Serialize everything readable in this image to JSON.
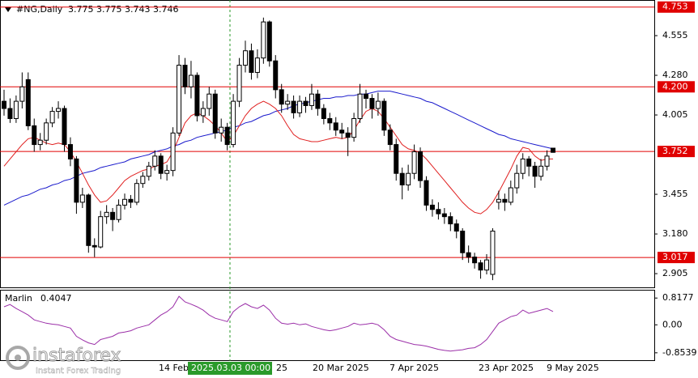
{
  "chart_data": {
    "type": "candlestick",
    "title": "#NG,Daily",
    "ohlc_text": "3.775 3.775 3.743 3.746",
    "candles": [
      [
        4.1,
        4.18,
        4.0,
        4.05
      ],
      [
        4.05,
        4.12,
        3.95,
        3.98
      ],
      [
        3.98,
        4.14,
        3.95,
        4.1
      ],
      [
        4.1,
        4.3,
        4.05,
        4.2
      ],
      [
        4.25,
        4.3,
        3.9,
        3.93
      ],
      [
        3.93,
        3.98,
        3.75,
        3.8
      ],
      [
        3.8,
        3.88,
        3.76,
        3.83
      ],
      [
        3.83,
        3.98,
        3.8,
        3.95
      ],
      [
        3.95,
        4.06,
        3.92,
        4.03
      ],
      [
        4.03,
        4.1,
        3.98,
        4.05
      ],
      [
        4.05,
        4.07,
        3.75,
        3.8
      ],
      [
        3.8,
        3.85,
        3.65,
        3.7
      ],
      [
        3.7,
        3.72,
        3.32,
        3.4
      ],
      [
        3.4,
        3.5,
        3.36,
        3.45
      ],
      [
        3.45,
        3.46,
        3.05,
        3.1
      ],
      [
        3.1,
        3.15,
        3.02,
        3.09
      ],
      [
        3.09,
        3.34,
        3.08,
        3.3
      ],
      [
        3.3,
        3.38,
        3.25,
        3.33
      ],
      [
        3.33,
        3.36,
        3.2,
        3.28
      ],
      [
        3.28,
        3.42,
        3.26,
        3.38
      ],
      [
        3.38,
        3.46,
        3.35,
        3.42
      ],
      [
        3.42,
        3.45,
        3.36,
        3.4
      ],
      [
        3.4,
        3.56,
        3.38,
        3.53
      ],
      [
        3.53,
        3.61,
        3.5,
        3.58
      ],
      [
        3.58,
        3.68,
        3.55,
        3.65
      ],
      [
        3.65,
        3.76,
        3.62,
        3.72
      ],
      [
        3.72,
        3.74,
        3.56,
        3.6
      ],
      [
        3.6,
        3.66,
        3.55,
        3.62
      ],
      [
        3.62,
        3.92,
        3.58,
        3.88
      ],
      [
        3.88,
        4.42,
        3.86,
        4.35
      ],
      [
        4.35,
        4.4,
        4.15,
        4.2
      ],
      [
        4.2,
        4.38,
        4.12,
        4.28
      ],
      [
        4.28,
        4.3,
        3.96,
        4.0
      ],
      [
        4.0,
        4.1,
        3.95,
        4.05
      ],
      [
        4.05,
        4.2,
        4.0,
        4.15
      ],
      [
        4.15,
        4.18,
        3.84,
        3.88
      ],
      [
        3.88,
        3.98,
        3.82,
        3.92
      ],
      [
        3.92,
        3.95,
        3.76,
        3.8
      ],
      [
        3.8,
        4.15,
        3.78,
        4.1
      ],
      [
        4.1,
        4.4,
        4.06,
        4.35
      ],
      [
        4.35,
        4.52,
        4.3,
        4.45
      ],
      [
        4.45,
        4.5,
        4.25,
        4.3
      ],
      [
        4.3,
        4.46,
        4.26,
        4.4
      ],
      [
        4.4,
        4.68,
        4.36,
        4.65
      ],
      [
        4.65,
        4.66,
        4.34,
        4.38
      ],
      [
        4.38,
        4.42,
        4.12,
        4.18
      ],
      [
        4.18,
        4.22,
        4.02,
        4.08
      ],
      [
        4.08,
        4.15,
        4.04,
        4.1
      ],
      [
        4.1,
        4.14,
        3.98,
        4.02
      ],
      [
        4.02,
        4.14,
        3.99,
        4.1
      ],
      [
        4.1,
        4.13,
        4.02,
        4.07
      ],
      [
        4.07,
        4.22,
        4.04,
        4.15
      ],
      [
        4.15,
        4.18,
        4.0,
        4.05
      ],
      [
        4.05,
        4.08,
        3.94,
        3.98
      ],
      [
        3.98,
        4.02,
        3.9,
        3.95
      ],
      [
        3.95,
        3.99,
        3.86,
        3.9
      ],
      [
        3.9,
        3.95,
        3.84,
        3.88
      ],
      [
        3.88,
        3.92,
        3.72,
        3.85
      ],
      [
        3.85,
        4.02,
        3.82,
        3.98
      ],
      [
        3.98,
        4.22,
        3.95,
        4.15
      ],
      [
        4.15,
        4.18,
        4.05,
        4.12
      ],
      [
        4.12,
        4.15,
        3.98,
        4.05
      ],
      [
        4.05,
        4.16,
        4.0,
        4.1
      ],
      [
        4.1,
        4.12,
        3.86,
        3.9
      ],
      [
        3.9,
        3.94,
        3.76,
        3.8
      ],
      [
        3.8,
        3.84,
        3.55,
        3.6
      ],
      [
        3.6,
        3.64,
        3.42,
        3.52
      ],
      [
        3.52,
        3.66,
        3.48,
        3.6
      ],
      [
        3.6,
        3.8,
        3.56,
        3.75
      ],
      [
        3.75,
        3.78,
        3.5,
        3.55
      ],
      [
        3.55,
        3.58,
        3.34,
        3.38
      ],
      [
        3.38,
        3.42,
        3.3,
        3.35
      ],
      [
        3.35,
        3.4,
        3.28,
        3.32
      ],
      [
        3.32,
        3.36,
        3.25,
        3.3
      ],
      [
        3.3,
        3.33,
        3.2,
        3.25
      ],
      [
        3.25,
        3.28,
        3.15,
        3.2
      ],
      [
        3.2,
        3.22,
        3.0,
        3.05
      ],
      [
        3.05,
        3.1,
        2.98,
        3.02
      ],
      [
        3.02,
        3.05,
        2.94,
        2.98
      ],
      [
        2.98,
        3.0,
        2.87,
        2.93
      ],
      [
        2.93,
        3.04,
        2.9,
        3.0
      ],
      [
        2.9,
        3.22,
        2.86,
        3.2
      ],
      [
        3.4,
        3.48,
        3.35,
        3.42
      ],
      [
        3.42,
        3.46,
        3.34,
        3.4
      ],
      [
        3.4,
        3.55,
        3.38,
        3.5
      ],
      [
        3.5,
        3.66,
        3.46,
        3.6
      ],
      [
        3.6,
        3.74,
        3.56,
        3.7
      ],
      [
        3.7,
        3.72,
        3.58,
        3.65
      ],
      [
        3.65,
        3.68,
        3.5,
        3.58
      ],
      [
        3.58,
        3.7,
        3.55,
        3.65
      ],
      [
        3.65,
        3.76,
        3.62,
        3.72
      ],
      [
        3.775,
        3.775,
        3.743,
        3.746
      ]
    ],
    "series": [
      {
        "color": "#1a1acc",
        "values": [
          3.38,
          3.4,
          3.42,
          3.44,
          3.45,
          3.47,
          3.49,
          3.5,
          3.52,
          3.53,
          3.55,
          3.56,
          3.58,
          3.6,
          3.61,
          3.62,
          3.64,
          3.65,
          3.66,
          3.67,
          3.68,
          3.7,
          3.71,
          3.72,
          3.73,
          3.75,
          3.76,
          3.77,
          3.79,
          3.8,
          3.82,
          3.83,
          3.85,
          3.86,
          3.87,
          3.88,
          3.89,
          3.9,
          3.92,
          3.93,
          3.95,
          3.96,
          3.98,
          4.0,
          4.01,
          4.03,
          4.04,
          4.05,
          4.07,
          4.08,
          4.09,
          4.1,
          4.11,
          4.12,
          4.12,
          4.13,
          4.13,
          4.14,
          4.14,
          4.15,
          4.15,
          4.16,
          4.17,
          4.17,
          4.17,
          4.16,
          4.15,
          4.14,
          4.13,
          4.12,
          4.1,
          4.09,
          4.07,
          4.05,
          4.03,
          4.01,
          3.99,
          3.97,
          3.95,
          3.93,
          3.91,
          3.89,
          3.87,
          3.86,
          3.84,
          3.83,
          3.82,
          3.81,
          3.8,
          3.79,
          3.78,
          3.77
        ]
      },
      {
        "color": "#e02020",
        "values": [
          3.65,
          3.7,
          3.75,
          3.8,
          3.84,
          3.85,
          3.83,
          3.81,
          3.8,
          3.81,
          3.8,
          3.75,
          3.68,
          3.6,
          3.52,
          3.45,
          3.4,
          3.41,
          3.45,
          3.5,
          3.55,
          3.58,
          3.6,
          3.62,
          3.63,
          3.65,
          3.66,
          3.68,
          3.75,
          3.85,
          3.95,
          4.0,
          4.02,
          4.0,
          3.97,
          3.93,
          3.88,
          3.82,
          3.86,
          3.93,
          4.0,
          4.05,
          4.08,
          4.1,
          4.08,
          4.05,
          4.0,
          3.93,
          3.87,
          3.84,
          3.83,
          3.82,
          3.82,
          3.83,
          3.84,
          3.85,
          3.84,
          3.85,
          3.9,
          3.97,
          4.03,
          4.05,
          4.03,
          3.98,
          3.92,
          3.86,
          3.8,
          3.77,
          3.76,
          3.74,
          3.7,
          3.65,
          3.6,
          3.55,
          3.5,
          3.45,
          3.4,
          3.36,
          3.33,
          3.32,
          3.35,
          3.4,
          3.47,
          3.55,
          3.63,
          3.72,
          3.78,
          3.77,
          3.72,
          3.69,
          3.7,
          3.7
        ]
      }
    ],
    "levels": [
      4.753,
      {
        "value": 4.2,
        "label": "4.200"
      },
      3.752,
      3.017
    ],
    "level_color": "#e00000",
    "ylim": [
      2.81,
      4.802
    ],
    "yticks": [
      4.555,
      {
        "value": 4.28,
        "label": "4.280"
      },
      4.005,
      3.455,
      {
        "value": 3.18,
        "label": "3.180"
      },
      2.905
    ],
    "indicator": {
      "name": "Marlin",
      "last": 0.4047,
      "color": "#9b2fa8",
      "values": [
        0.55,
        0.62,
        0.5,
        0.4,
        0.3,
        0.15,
        0.1,
        0.05,
        0.02,
        0.0,
        -0.05,
        -0.1,
        -0.35,
        -0.46,
        -0.55,
        -0.6,
        -0.45,
        -0.4,
        -0.35,
        -0.25,
        -0.22,
        -0.18,
        -0.1,
        -0.05,
        0.0,
        0.15,
        0.3,
        0.4,
        0.55,
        0.87,
        0.7,
        0.63,
        0.55,
        0.45,
        0.3,
        0.2,
        0.15,
        0.1,
        0.4,
        0.55,
        0.65,
        0.55,
        0.5,
        0.6,
        0.45,
        0.2,
        0.05,
        0.02,
        0.05,
        0.0,
        0.03,
        -0.05,
        -0.1,
        -0.15,
        -0.18,
        -0.15,
        -0.1,
        -0.05,
        0.05,
        0.0,
        0.02,
        0.05,
        0.0,
        -0.15,
        -0.35,
        -0.45,
        -0.5,
        -0.55,
        -0.6,
        -0.62,
        -0.65,
        -0.7,
        -0.75,
        -0.78,
        -0.8,
        -0.78,
        -0.76,
        -0.72,
        -0.7,
        -0.6,
        -0.45,
        -0.2,
        0.05,
        0.15,
        0.25,
        0.3,
        0.45,
        0.35,
        0.4,
        0.45,
        0.5,
        0.4047
      ],
      "y2lim": [
        -1.08,
        1.07
      ],
      "y2ticks": [
        0.8177,
        {
          "value": 0,
          "label": "0.00"
        },
        -0.8539
      ]
    },
    "x_labels": [
      "14 Feb 2025",
      "25",
      "20 Mar 2025",
      "7 Apr 2025",
      "23 Apr 2025",
      "9 May 2025"
    ],
    "cursor_label": "2025.03.03 00:00",
    "logo": {
      "name": "instaforex",
      "tagline": "Instant Forex Trading"
    }
  }
}
